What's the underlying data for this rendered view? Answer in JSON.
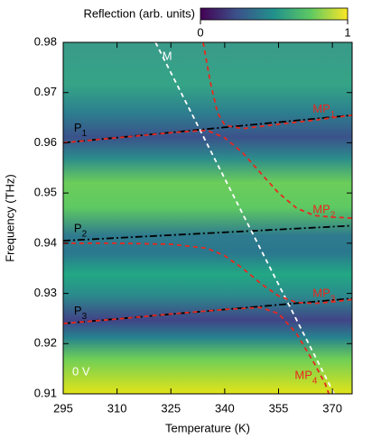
{
  "chart_data": {
    "type": "line",
    "xlabel": "Temperature (K)",
    "ylabel": "Frequency (THz)",
    "xlim": [
      295,
      375.5
    ],
    "ylim": [
      0.91,
      0.98
    ],
    "xticks": [
      295,
      310,
      325,
      340,
      355,
      370
    ],
    "yticks": [
      0.91,
      0.92,
      0.93,
      0.94,
      0.95,
      0.96,
      0.97,
      0.98
    ],
    "colorbar": {
      "label": "Reflection (arb. units)",
      "clim": [
        0,
        1
      ],
      "ticks": [
        0,
        1
      ]
    },
    "annotation": "0 V",
    "series": [
      {
        "name": "P",
        "subscript": "1",
        "color": "#000000",
        "style": "dashdot",
        "x": [
          295,
          375.5
        ],
        "values": [
          0.96,
          0.9655
        ]
      },
      {
        "name": "P",
        "subscript": "2",
        "color": "#000000",
        "style": "dashdot",
        "x": [
          295,
          375.5
        ],
        "values": [
          0.9405,
          0.9435
        ]
      },
      {
        "name": "P",
        "subscript": "3",
        "color": "#000000",
        "style": "dashdot",
        "x": [
          295,
          375.5
        ],
        "values": [
          0.924,
          0.929
        ]
      },
      {
        "name": "M",
        "color": "#ffffff",
        "style": "dashed",
        "x": [
          320.7,
          370.5
        ],
        "values": [
          0.98,
          0.91
        ]
      },
      {
        "name": "MP",
        "subscript": "1",
        "color": "#e8281e",
        "style": "dashed",
        "x": [
          334,
          336,
          338,
          340,
          345,
          355,
          365,
          375.5
        ],
        "values": [
          0.98,
          0.972,
          0.966,
          0.9635,
          0.9628,
          0.9637,
          0.9645,
          0.9655
        ]
      },
      {
        "name": "MP",
        "subscript": "2",
        "color": "#e8281e",
        "style": "dashed",
        "x": [
          295,
          310,
          325,
          335,
          340,
          345,
          350,
          355,
          360,
          365,
          370,
          375.5
        ],
        "values": [
          0.96,
          0.961,
          0.962,
          0.9625,
          0.961,
          0.958,
          0.954,
          0.95,
          0.947,
          0.9455,
          0.9452,
          0.945
        ]
      },
      {
        "name": "MP",
        "subscript": "3",
        "color": "#e8281e",
        "style": "dashed",
        "x": [
          295,
          310,
          325,
          335,
          340,
          345,
          350,
          355,
          360,
          365,
          370,
          375.5
        ],
        "values": [
          0.94,
          0.94,
          0.9398,
          0.939,
          0.9375,
          0.935,
          0.932,
          0.9295,
          0.9282,
          0.928,
          0.9283,
          0.9288
        ]
      },
      {
        "name": "MP",
        "subscript": "4",
        "color": "#e8281e",
        "style": "dashed",
        "x": [
          295,
          310,
          325,
          340,
          350,
          355,
          360,
          365,
          368,
          369
        ],
        "values": [
          0.924,
          0.9249,
          0.9259,
          0.9268,
          0.9272,
          0.926,
          0.922,
          0.916,
          0.912,
          0.91
        ]
      }
    ]
  }
}
